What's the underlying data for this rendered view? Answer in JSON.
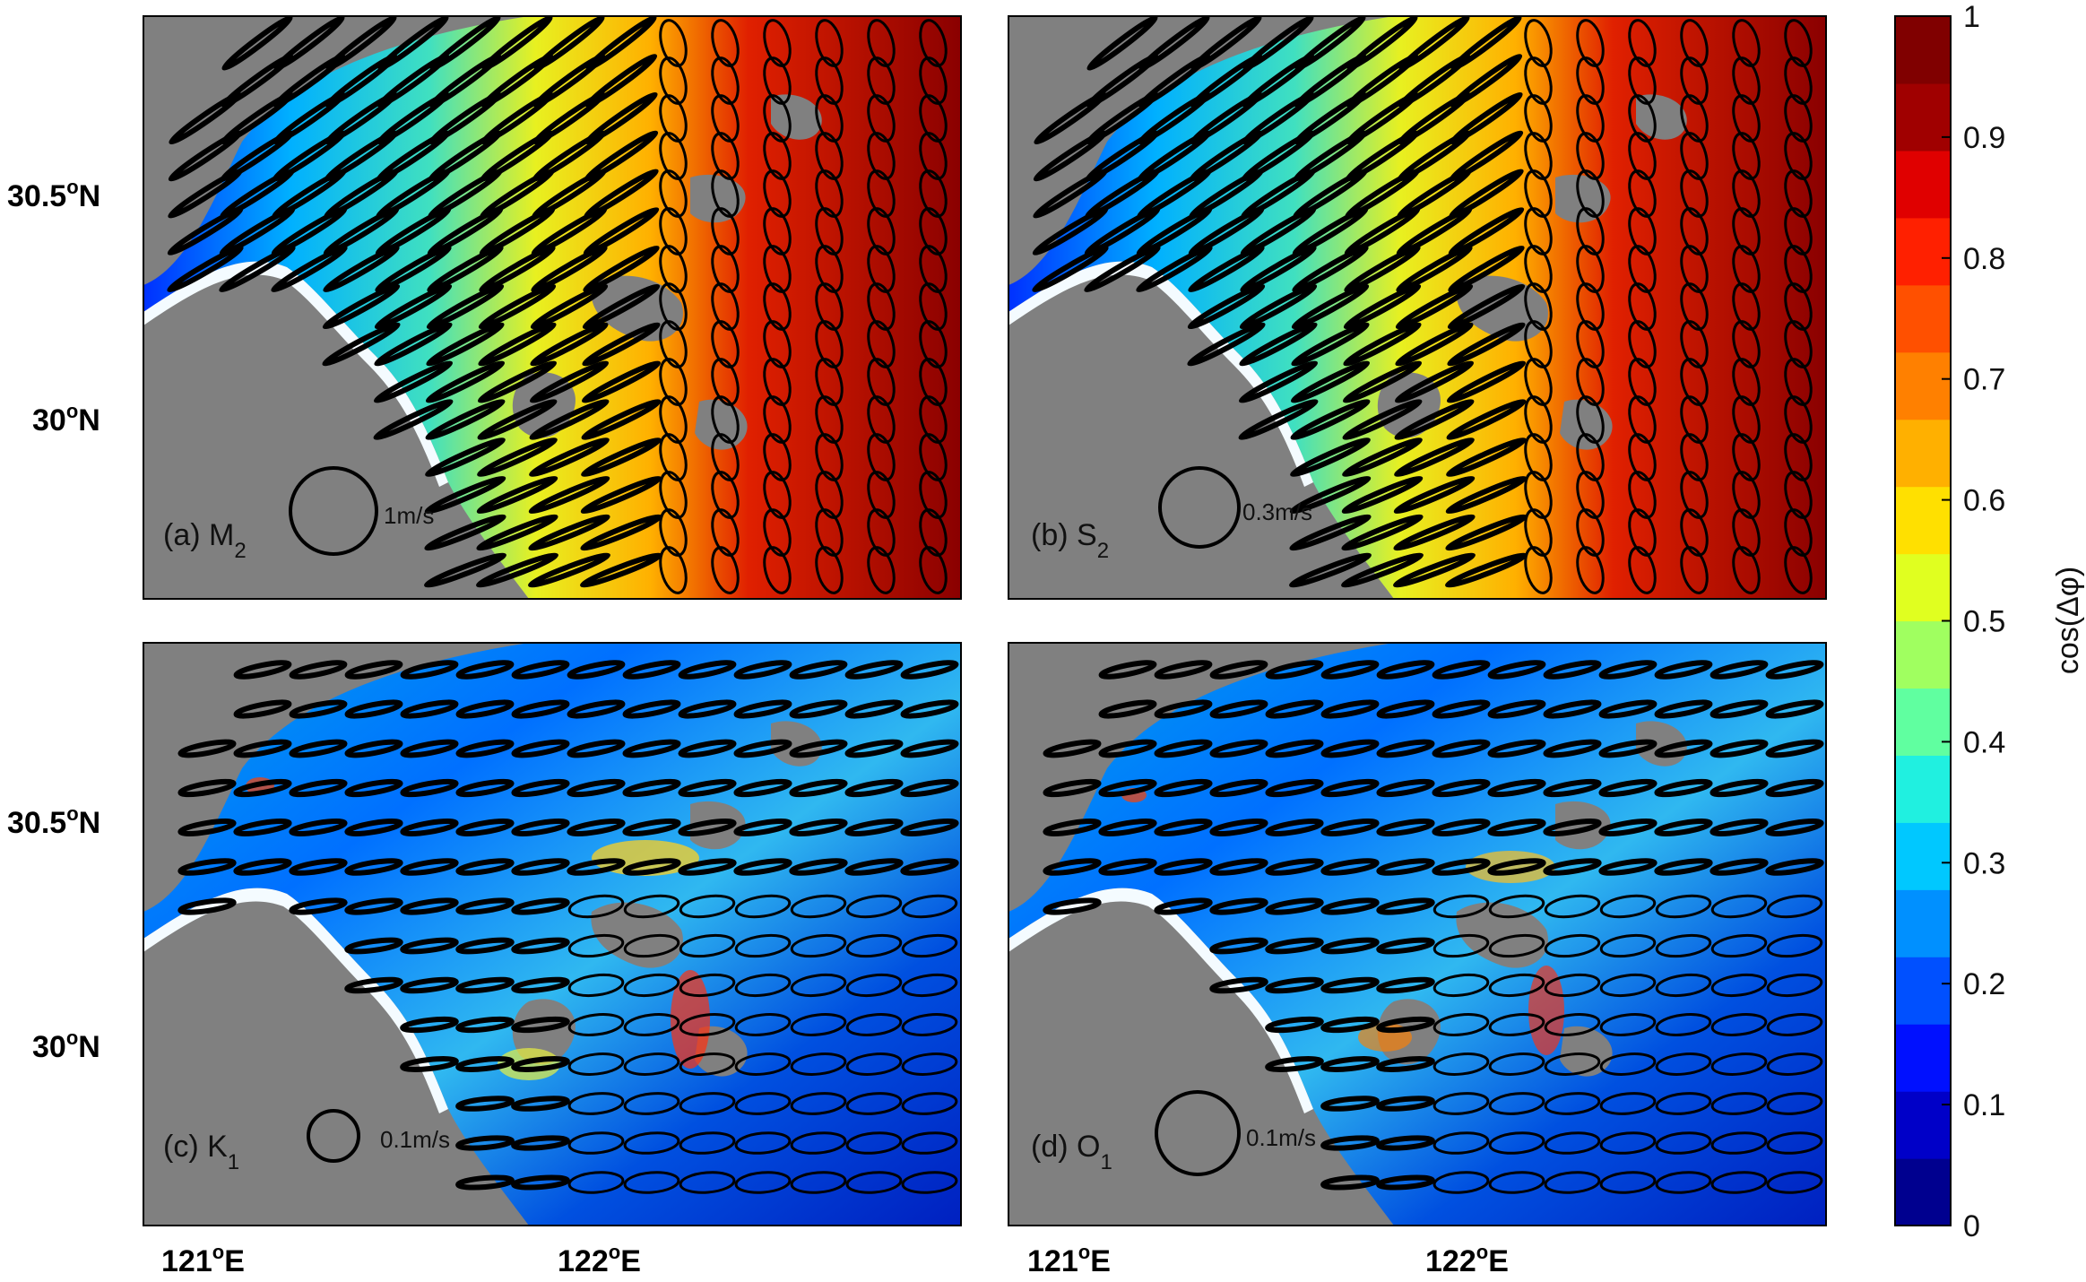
{
  "figure": {
    "panels": [
      {
        "id": "a",
        "label_prefix": "(a) ",
        "constituent": "M",
        "subscript": "2",
        "scale_text": "1m/s",
        "regime": "high"
      },
      {
        "id": "b",
        "label_prefix": "(b) ",
        "constituent": "S",
        "subscript": "2",
        "scale_text": "0.3m/s",
        "regime": "high"
      },
      {
        "id": "c",
        "label_prefix": "(c) ",
        "constituent": "K",
        "subscript": "1",
        "scale_text": "0.1m/s",
        "regime": "low"
      },
      {
        "id": "d",
        "label_prefix": "(d) ",
        "constituent": "O",
        "subscript": "1",
        "scale_text": "0.1m/s",
        "regime": "low"
      }
    ],
    "y_ticks": [
      {
        "num": "30.5",
        "deg": "o",
        "hemi": "N"
      },
      {
        "num": "30",
        "deg": "o",
        "hemi": "N"
      }
    ],
    "x_ticks": [
      {
        "num": "121",
        "deg": "o",
        "hemi": "E"
      },
      {
        "num": "122",
        "deg": "o",
        "hemi": "E"
      }
    ],
    "colorbar": {
      "label": "cos(Δφ)",
      "ticks": [
        "1",
        "0.9",
        "0.8",
        "0.7",
        "0.6",
        "0.5",
        "0.4",
        "0.3",
        "0.2",
        "0.1",
        "0"
      ],
      "colors": [
        "#00008f",
        "#0000c8",
        "#0010ff",
        "#0050ff",
        "#0090ff",
        "#00c8ff",
        "#20f0e0",
        "#60ffa0",
        "#a0ff60",
        "#e0ff20",
        "#ffe000",
        "#ffb000",
        "#ff8000",
        "#ff5000",
        "#ff2000",
        "#e00000",
        "#a00000",
        "#800000"
      ]
    },
    "colors": {
      "land": "#808080",
      "ellipse": "#000000",
      "shore": "#ffffff"
    }
  }
}
